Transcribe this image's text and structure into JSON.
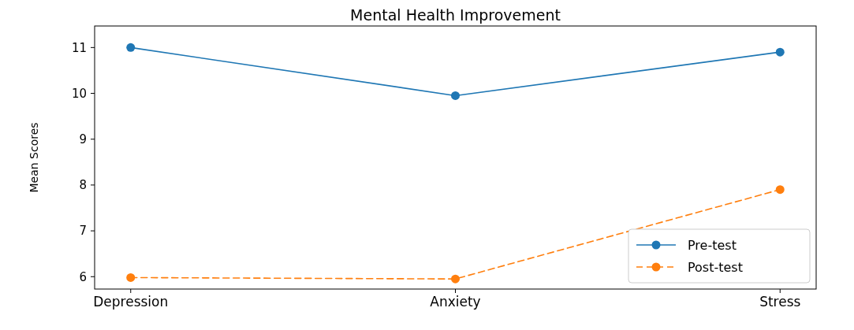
{
  "chart_data": {
    "type": "line",
    "title": "Mental Health Improvement",
    "ylabel": "Mean Scores",
    "categories": [
      "Depression",
      "Anxiety",
      "Stress"
    ],
    "series": [
      {
        "name": "Pre-test",
        "color": "#1f77b4",
        "values": [
          11.0,
          9.95,
          10.9
        ],
        "line_style": "solid"
      },
      {
        "name": "Post-test",
        "color": "#ff7f0e",
        "values": [
          5.98,
          5.95,
          7.9
        ],
        "line_style": "dashed"
      }
    ],
    "ylim": [
      5.73,
      11.47
    ],
    "yticks": [
      6,
      7,
      8,
      9,
      10,
      11
    ],
    "marker": "circle",
    "legend": "bottom right",
    "grid": false
  }
}
